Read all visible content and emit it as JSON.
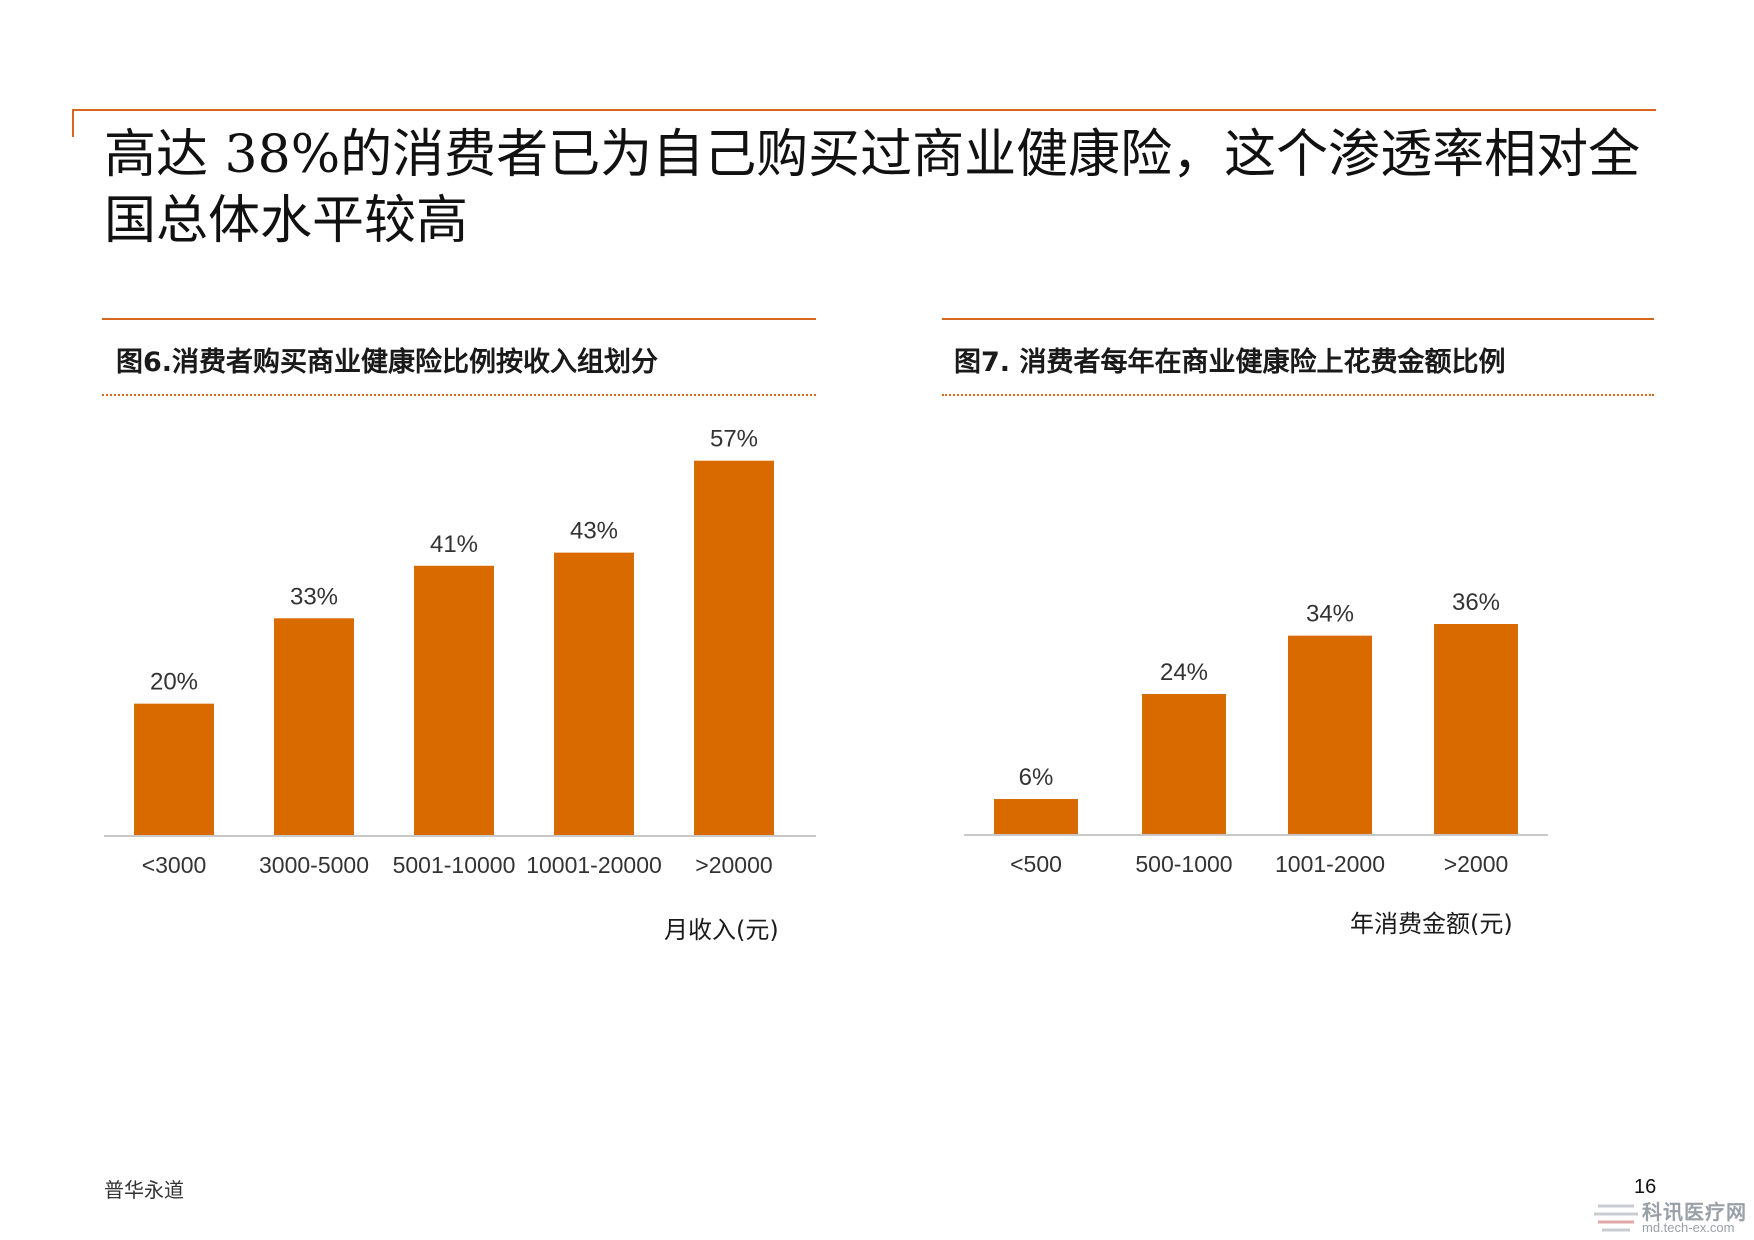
{
  "page": {
    "title": "高达 38%的消费者已为自己购买过商业健康险，这个渗透率相对全国总体水平较高",
    "footer_brand": "普华永道",
    "page_number": "16",
    "watermark": {
      "name": "科讯医疗网",
      "url": "md.tech-ex.com"
    },
    "accent_color": "#d9661f",
    "bar_color": "#d96a00"
  },
  "figures": [
    {
      "title": "图6.消费者购买商业健康险比例按收入组划分"
    },
    {
      "title": "图7. 消费者每年在商业健康险上花费金额比例"
    }
  ],
  "chart_data": [
    {
      "type": "bar",
      "categories": [
        "<3000",
        "3000-5000",
        "5001-10000",
        "10001-20000",
        ">20000"
      ],
      "values": [
        20,
        33,
        41,
        43,
        57
      ],
      "labels": [
        "20%",
        "33%",
        "41%",
        "43%",
        "57%"
      ],
      "xlabel": "月收入(元)",
      "ylim": [
        0,
        60
      ],
      "grid": false,
      "legend": "none"
    },
    {
      "type": "bar",
      "categories": [
        "<500",
        "500-1000",
        "1001-2000",
        ">2000"
      ],
      "values": [
        6,
        24,
        34,
        36
      ],
      "labels": [
        "6%",
        "24%",
        "34%",
        "36%"
      ],
      "xlabel": "年消费金额(元)",
      "ylim": [
        0,
        60
      ],
      "grid": false,
      "legend": "none"
    }
  ]
}
